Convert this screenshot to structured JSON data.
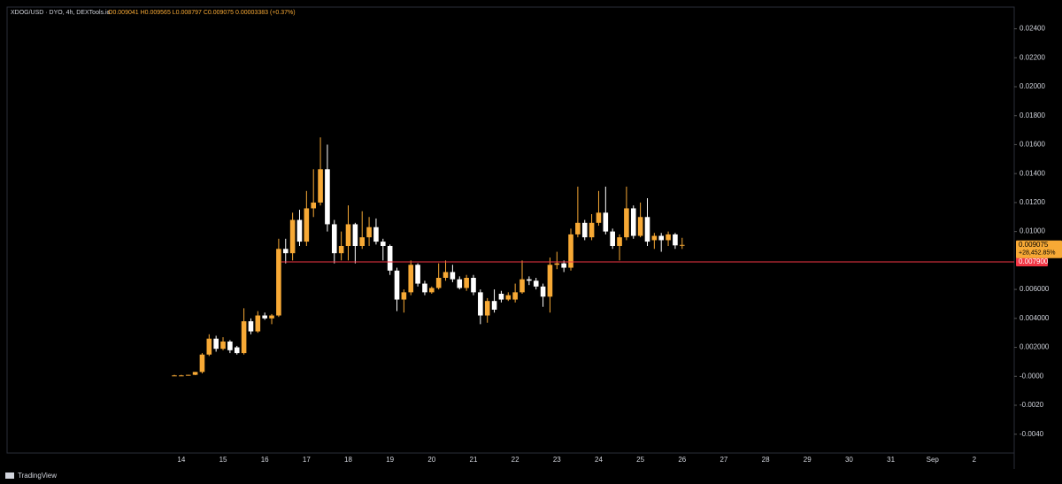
{
  "chart_data": {
    "type": "candlestick",
    "title": "XDOG/USD · DYO, 4h, DEXTools.io",
    "summary": "O0.009041 H0.009565 L0.008797 C0.009075 0.00003383 (+0.37%)",
    "brand": "TradingView",
    "up_color": "#f7a935",
    "down_color": "#ffffff",
    "categories": [
      null,
      "14",
      null,
      null,
      null,
      null,
      null,
      "15",
      null,
      null,
      null,
      null,
      null,
      "16",
      null,
      null,
      null,
      null,
      null,
      "17",
      null,
      null,
      null,
      null,
      null,
      "18",
      null,
      null,
      null,
      null,
      null,
      "19",
      null,
      null,
      null,
      null,
      null,
      "20",
      null,
      null,
      null,
      null,
      null,
      "21",
      null,
      null,
      null,
      null,
      null,
      "22",
      null,
      null,
      null,
      null,
      null,
      "23",
      null,
      null,
      null,
      null,
      null,
      "24",
      null,
      null,
      null,
      null,
      null,
      "25",
      null,
      null,
      null,
      null,
      null,
      "26",
      null,
      null,
      null,
      null,
      null,
      "27",
      null,
      null,
      null,
      null,
      null,
      "28",
      null,
      null,
      null,
      null,
      null,
      "29",
      null,
      null,
      null,
      null,
      null,
      "30",
      null,
      null,
      null,
      null,
      null,
      "31",
      null,
      null,
      null,
      null,
      null,
      "Sep",
      null,
      null,
      null,
      null,
      null,
      "2"
    ],
    "open": [
      5e-05,
      5e-05,
      5e-05,
      0.0001,
      0.0003,
      0.0015,
      0.0026,
      0.0019,
      0.0024,
      0.002,
      0.0016,
      0.0038,
      0.0031,
      0.0042,
      0.004,
      0.0042,
      0.0088,
      0.0085,
      0.0108,
      0.0093,
      0.0116,
      0.012,
      0.0143,
      0.0105,
      0.0085,
      0.009,
      0.0105,
      0.009,
      0.0096,
      0.0103,
      0.0093,
      0.009,
      0.0073,
      0.0053,
      0.0058,
      0.0077,
      0.0064,
      0.0058,
      0.0061,
      0.0068,
      0.0072,
      0.0067,
      0.0061,
      0.0068,
      0.0058,
      0.0042,
      0.0052,
      0.0057,
      0.0053,
      0.0053,
      0.0058,
      0.0067,
      0.0066,
      0.0062,
      0.0055,
      0.0077,
      0.0078,
      0.0075,
      0.0098,
      0.0106,
      0.0096,
      0.0106,
      0.0113,
      0.01,
      0.009,
      0.0096,
      0.0116,
      0.0097,
      0.011,
      0.0094,
      0.0097,
      0.0094,
      0.0098,
      0.009041,
      null,
      null,
      null,
      null,
      null,
      null,
      null,
      null,
      null,
      null,
      null,
      null,
      null,
      null,
      null,
      null,
      null,
      null,
      null,
      null,
      null,
      null,
      null,
      null,
      null,
      null,
      null,
      null,
      null,
      null,
      null,
      null,
      null,
      null,
      null,
      null,
      null,
      null,
      null,
      null,
      null,
      null
    ],
    "high": [
      0.0001,
      0.0001,
      0.0001,
      0.0003,
      0.0016,
      0.0029,
      0.0028,
      0.0027,
      0.0025,
      0.0021,
      0.0047,
      0.004,
      0.0045,
      0.0044,
      0.0043,
      0.0095,
      0.0095,
      0.0113,
      0.0115,
      0.0128,
      0.0143,
      0.0165,
      0.016,
      0.0108,
      0.01,
      0.0118,
      0.0106,
      0.0114,
      0.011,
      0.0109,
      0.0095,
      0.0091,
      0.0075,
      0.006,
      0.008,
      0.0078,
      0.0066,
      0.0062,
      0.0078,
      0.008,
      0.0077,
      0.0069,
      0.007,
      0.007,
      0.006,
      0.0054,
      0.006,
      0.0059,
      0.0058,
      0.0064,
      0.008,
      0.0069,
      0.0068,
      0.0064,
      0.0082,
      0.0086,
      0.008,
      0.0102,
      0.0131,
      0.0108,
      0.0112,
      0.0128,
      0.0131,
      0.0102,
      0.0098,
      0.0131,
      0.0118,
      0.012,
      0.0123,
      0.0099,
      0.0099,
      0.01,
      0.0099,
      0.009565,
      null,
      null,
      null,
      null,
      null,
      null,
      null,
      null,
      null,
      null,
      null,
      null,
      null,
      null,
      null,
      null,
      null,
      null,
      null,
      null,
      null,
      null,
      null,
      null,
      null,
      null,
      null,
      null,
      null,
      null,
      null,
      null,
      null,
      null,
      null,
      null,
      null,
      null,
      null,
      null,
      null,
      null
    ],
    "low": [
      3e-05,
      3e-05,
      4e-05,
      8e-05,
      0.0002,
      0.0014,
      0.0017,
      0.0018,
      0.0016,
      0.0015,
      0.0015,
      0.0029,
      0.003,
      0.0039,
      0.0036,
      0.0041,
      0.0078,
      0.008,
      0.009,
      0.009,
      0.011,
      0.0118,
      0.01,
      0.0078,
      0.008,
      0.008,
      0.0078,
      0.0088,
      0.009,
      0.0091,
      0.008,
      0.007,
      0.0045,
      0.0044,
      0.0056,
      0.0062,
      0.0056,
      0.0057,
      0.006,
      0.0066,
      0.0065,
      0.006,
      0.0059,
      0.0056,
      0.0036,
      0.0037,
      0.0044,
      0.0051,
      0.0052,
      0.0051,
      0.0057,
      0.0063,
      0.006,
      0.0048,
      0.0044,
      0.0074,
      0.0072,
      0.0073,
      0.0096,
      0.0094,
      0.0094,
      0.0104,
      0.0098,
      0.0088,
      0.008,
      0.0094,
      0.0095,
      0.0096,
      0.009,
      0.0088,
      0.0086,
      0.009,
      0.0088,
      0.008797,
      null,
      null,
      null,
      null,
      null,
      null,
      null,
      null,
      null,
      null,
      null,
      null,
      null,
      null,
      null,
      null,
      null,
      null,
      null,
      null,
      null,
      null,
      null,
      null,
      null,
      null,
      null,
      null,
      null,
      null,
      null,
      null,
      null,
      null,
      null,
      null,
      null,
      null,
      null,
      null,
      null,
      null
    ],
    "close": [
      6e-05,
      6e-05,
      0.0001,
      0.0003,
      0.0015,
      0.0026,
      0.0019,
      0.0024,
      0.0018,
      0.0016,
      0.0038,
      0.0031,
      0.0042,
      0.004,
      0.0042,
      0.0088,
      0.0085,
      0.0108,
      0.0093,
      0.0116,
      0.012,
      0.0143,
      0.0105,
      0.0085,
      0.009,
      0.0105,
      0.009,
      0.0096,
      0.0103,
      0.0093,
      0.009,
      0.0073,
      0.0053,
      0.0058,
      0.0077,
      0.0064,
      0.0058,
      0.0061,
      0.0068,
      0.0072,
      0.0067,
      0.0061,
      0.0068,
      0.0058,
      0.0042,
      0.0052,
      0.0046,
      0.0053,
      0.0056,
      0.0058,
      0.0067,
      0.0066,
      0.0062,
      0.0055,
      0.0077,
      0.0078,
      0.0075,
      0.0098,
      0.0106,
      0.0096,
      0.0106,
      0.0113,
      0.01,
      0.009,
      0.0096,
      0.0116,
      0.0097,
      0.011,
      0.0093,
      0.0097,
      0.0094,
      0.0098,
      0.009041,
      0.009075,
      null,
      null,
      null,
      null,
      null,
      null,
      null,
      null,
      null,
      null,
      null,
      null,
      null,
      null,
      null,
      null,
      null,
      null,
      null,
      null,
      null,
      null,
      null,
      null,
      null,
      null,
      null,
      null,
      null,
      null,
      null,
      null,
      null,
      null,
      null,
      null,
      null,
      null,
      null,
      null,
      null,
      null
    ],
    "last_price": 0.009075,
    "change_label": "+28,452.85%",
    "hline": {
      "value": 0.0079,
      "label": "0.007900",
      "color": "#f23645"
    },
    "ylim": [
      -0.0053,
      0.0255
    ],
    "yticks": [
      {
        "value": 0.024,
        "label": "0.02400"
      },
      {
        "value": 0.022,
        "label": "0.02200"
      },
      {
        "value": 0.02,
        "label": "0.02000"
      },
      {
        "value": 0.018,
        "label": "0.01800"
      },
      {
        "value": 0.016,
        "label": "0.01600"
      },
      {
        "value": 0.014,
        "label": "0.01400"
      },
      {
        "value": 0.012,
        "label": "0.01200"
      },
      {
        "value": 0.01,
        "label": "0.01000"
      },
      {
        "value": 0.006,
        "label": "0.006000"
      },
      {
        "value": 0.004,
        "label": "0.004000"
      },
      {
        "value": 0.002,
        "label": "0.002000"
      },
      {
        "value": 0,
        "label": "-0.0000"
      },
      {
        "value": -0.002,
        "label": "-0.0020"
      },
      {
        "value": -0.004,
        "label": "-0.0040"
      }
    ]
  }
}
